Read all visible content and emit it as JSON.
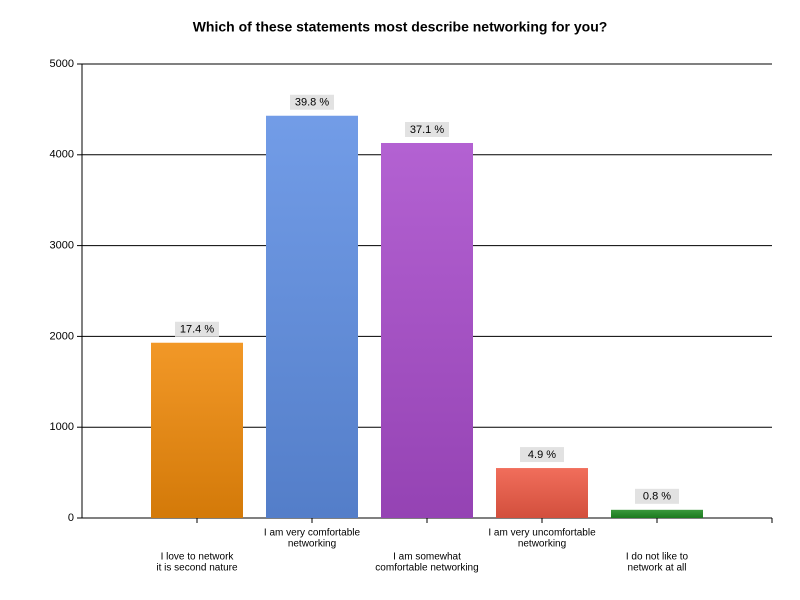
{
  "chart_data": {
    "type": "bar",
    "title": "Which of these statements most describe networking for you?",
    "categories": [
      [
        "I love to network",
        "it is second nature"
      ],
      [
        "I am very comfortable",
        "networking"
      ],
      [
        "I am somewhat",
        "comfortable networking"
      ],
      [
        "I am very uncomfortable",
        "networking"
      ],
      [
        "I do not like to",
        "network at all"
      ]
    ],
    "values": [
      1930,
      4430,
      4130,
      550,
      90
    ],
    "percent_labels": [
      "17.4 %",
      "39.8 %",
      "37.1 %",
      "4.9 %",
      "0.8 %"
    ],
    "colors": [
      "#f08a0a",
      "#5f8fe4",
      "#a94ccc",
      "#ef5a45",
      "#1f8a22"
    ],
    "ylim": [
      0,
      5000
    ],
    "yticks": [
      0,
      1000,
      2000,
      3000,
      4000,
      5000
    ],
    "grid": true
  }
}
